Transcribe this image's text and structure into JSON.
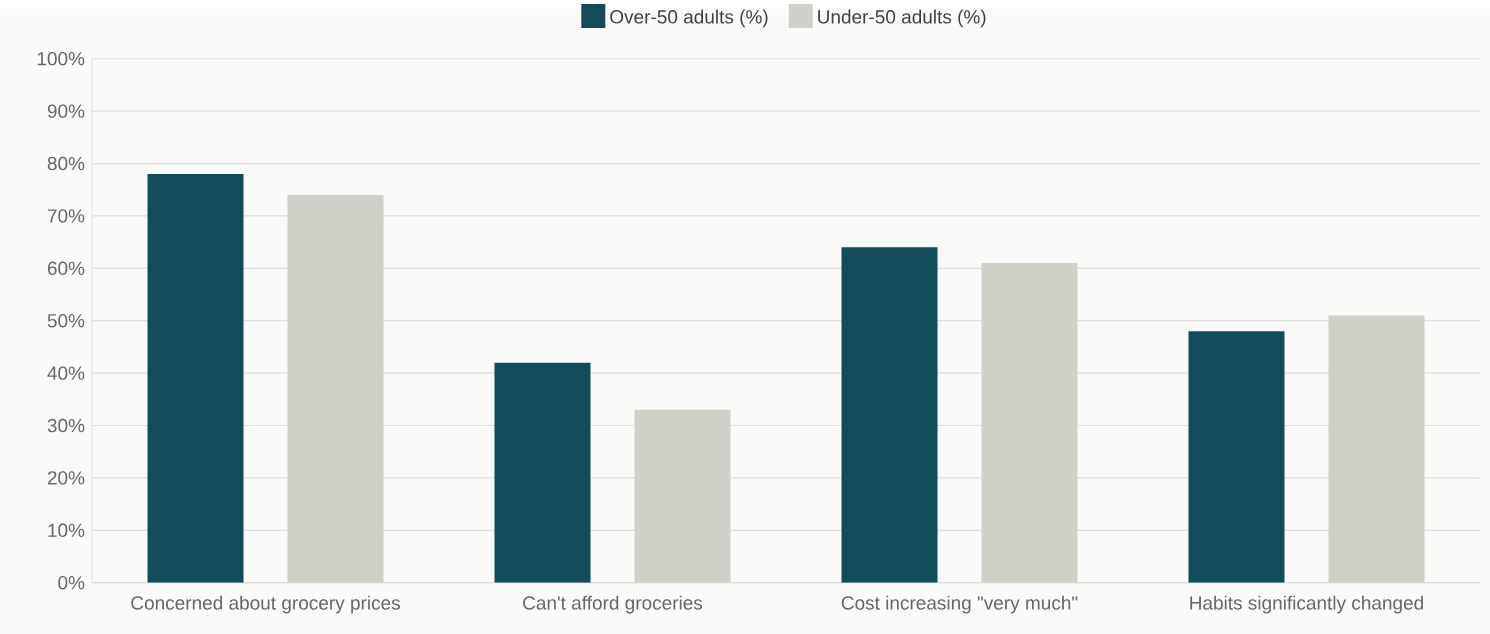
{
  "chart_data": {
    "type": "bar",
    "categories": [
      "Concerned about grocery prices",
      "Can't afford groceries",
      "Cost increasing \"very much\"",
      "Habits significantly changed"
    ],
    "series": [
      {
        "name": "Over-50 adults (%)",
        "color": "#124b5a",
        "values": [
          78,
          42,
          64,
          48
        ]
      },
      {
        "name": "Under-50 adults (%)",
        "color": "#d1d0c8",
        "values": [
          74,
          33,
          61,
          51
        ]
      }
    ],
    "ylim": [
      0,
      100
    ],
    "yticks": [
      {
        "value": 0,
        "label": "0%"
      },
      {
        "value": 10,
        "label": "10%"
      },
      {
        "value": 20,
        "label": "20%"
      },
      {
        "value": 30,
        "label": "30%"
      },
      {
        "value": 40,
        "label": "40%"
      },
      {
        "value": 50,
        "label": "50%"
      },
      {
        "value": 60,
        "label": "60%"
      },
      {
        "value": 70,
        "label": "70%"
      },
      {
        "value": 80,
        "label": "80%"
      },
      {
        "value": 90,
        "label": "90%"
      },
      {
        "value": 100,
        "label": "100%"
      }
    ],
    "grid": "y",
    "legend": "top"
  }
}
